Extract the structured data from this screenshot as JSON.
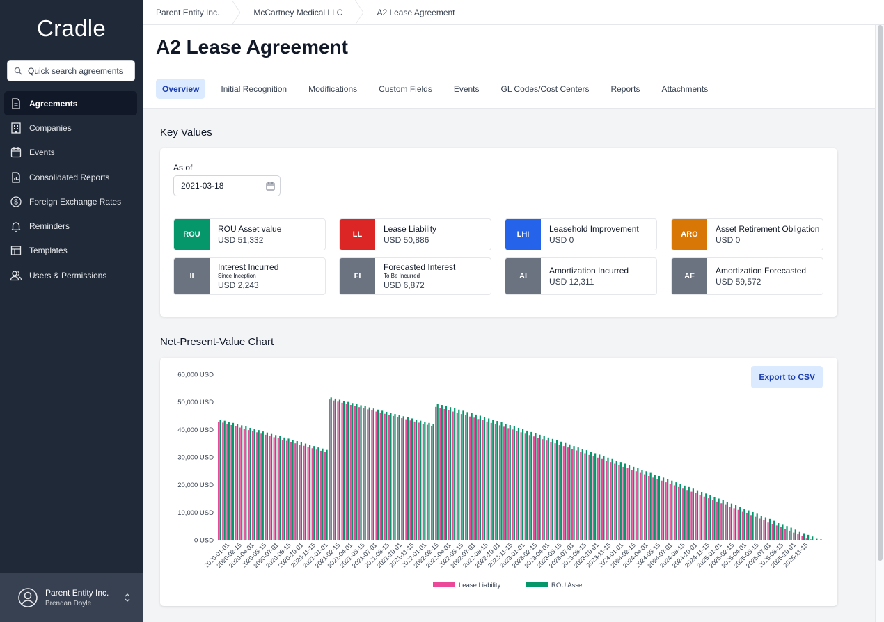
{
  "app": {
    "brand": "Cradle"
  },
  "search": {
    "placeholder": "Quick search agreements"
  },
  "sidebar": {
    "items": [
      {
        "label": "Agreements",
        "icon": "document-icon",
        "active": true
      },
      {
        "label": "Companies",
        "icon": "building-icon",
        "active": false
      },
      {
        "label": "Events",
        "icon": "calendar-icon",
        "active": false
      },
      {
        "label": "Consolidated Reports",
        "icon": "report-icon",
        "active": false
      },
      {
        "label": "Foreign Exchange Rates",
        "icon": "dollar-icon",
        "active": false
      },
      {
        "label": "Reminders",
        "icon": "bell-icon",
        "active": false
      },
      {
        "label": "Templates",
        "icon": "template-icon",
        "active": false
      },
      {
        "label": "Users & Permissions",
        "icon": "users-icon",
        "active": false
      }
    ]
  },
  "profile": {
    "org": "Parent Entity Inc.",
    "user": "Brendan Doyle"
  },
  "breadcrumb": [
    "Parent Entity Inc.",
    "McCartney Medical LLC",
    "A2 Lease Agreement"
  ],
  "page": {
    "title": "A2 Lease Agreement",
    "tabs": [
      "Overview",
      "Initial Recognition",
      "Modifications",
      "Custom Fields",
      "Events",
      "GL Codes/Cost Centers",
      "Reports",
      "Attachments"
    ],
    "active_tab": "Overview"
  },
  "key_values": {
    "section_title": "Key Values",
    "as_of_label": "As of",
    "as_of_value": "2021-03-18",
    "cards": [
      {
        "badge": "ROU",
        "label": "ROU Asset value",
        "sub": "",
        "value": "USD 51,332",
        "color": "#059669"
      },
      {
        "badge": "LL",
        "label": "Lease Liability",
        "sub": "",
        "value": "USD 50,886",
        "color": "#dc2626"
      },
      {
        "badge": "LHI",
        "label": "Leasehold Improvement",
        "sub": "",
        "value": "USD 0",
        "color": "#2563eb"
      },
      {
        "badge": "ARO",
        "label": "Asset Retirement Obligation",
        "sub": "",
        "value": "USD 0",
        "color": "#d97706"
      },
      {
        "badge": "II",
        "label": "Interest Incurred",
        "sub": "Since Inception",
        "value": "USD 2,243",
        "color": "#6b7280"
      },
      {
        "badge": "FI",
        "label": "Forecasted Interest",
        "sub": "To Be Incurred",
        "value": "USD 6,872",
        "color": "#6b7280"
      },
      {
        "badge": "AI",
        "label": "Amortization Incurred",
        "sub": "",
        "value": "USD 12,311",
        "color": "#6b7280"
      },
      {
        "badge": "AF",
        "label": "Amortization Forecasted",
        "sub": "",
        "value": "USD 59,572",
        "color": "#6b7280"
      }
    ]
  },
  "npv": {
    "section_title": "Net-Present-Value Chart",
    "export_label": "Export to CSV"
  },
  "chart_data": {
    "type": "bar",
    "title": "",
    "xlabel": "",
    "ylabel": "",
    "ylim": [
      0,
      60000
    ],
    "y_ticks": [
      "0 USD",
      "10,000 USD",
      "20,000 USD",
      "30,000 USD",
      "40,000 USD",
      "50,000 USD",
      "60,000 USD"
    ],
    "legend": "bottom",
    "x_tick_labels": [
      "2020-01-01",
      "2020-02-15",
      "2020-04-01",
      "2020-05-15",
      "2020-07-01",
      "2020-08-15",
      "2020-10-01",
      "2020-11-15",
      "2021-01-01",
      "2021-02-15",
      "2021-04-01",
      "2021-05-15",
      "2021-07-01",
      "2021-08-15",
      "2021-10-01",
      "2021-11-15",
      "2022-01-01",
      "2022-02-15",
      "2022-04-01",
      "2022-05-15",
      "2022-07-01",
      "2022-08-15",
      "2022-10-01",
      "2022-11-15",
      "2023-01-01",
      "2023-02-15",
      "2023-04-01",
      "2023-05-15",
      "2023-07-01",
      "2023-08-15",
      "2023-10-01",
      "2023-11-15",
      "2024-01-01",
      "2024-02-15",
      "2024-04-01",
      "2024-05-15",
      "2024-07-01",
      "2024-08-15",
      "2024-10-01",
      "2024-11-15",
      "2025-01-01",
      "2025-02-15",
      "2025-04-01",
      "2025-05-15",
      "2025-07-01",
      "2025-08-15",
      "2025-10-01",
      "2025-11-15"
    ],
    "series": [
      {
        "name": "Lease Liability",
        "color": "#ec4899",
        "values": [
          42800,
          42500,
          42000,
          41600,
          41100,
          40700,
          40300,
          39800,
          39400,
          39000,
          38500,
          38100,
          37600,
          37200,
          36800,
          36300,
          35900,
          35400,
          35000,
          34500,
          34100,
          33700,
          33200,
          32700,
          32300,
          31800,
          50900,
          50500,
          50100,
          49700,
          49300,
          48900,
          48500,
          48100,
          47700,
          47300,
          46900,
          46500,
          46100,
          45700,
          45300,
          44900,
          44500,
          44100,
          43700,
          43300,
          42900,
          42500,
          42100,
          41700,
          41300,
          48200,
          47800,
          47400,
          47000,
          46500,
          46100,
          45600,
          45200,
          44700,
          44300,
          43800,
          43400,
          42900,
          42400,
          42000,
          41500,
          41000,
          40500,
          40000,
          39500,
          39000,
          38500,
          38000,
          37500,
          37000,
          36500,
          36000,
          35500,
          35000,
          34500,
          34000,
          33500,
          32900,
          32400,
          31900,
          31400,
          30800,
          30300,
          29800,
          29300,
          28700,
          28200,
          27600,
          27100,
          26500,
          26000,
          25400,
          24900,
          24300,
          23800,
          23200,
          22600,
          22100,
          21500,
          20900,
          20400,
          19800,
          19200,
          18600,
          18100,
          17500,
          16900,
          16300,
          15700,
          15100,
          14500,
          13900,
          13300,
          12700,
          12100,
          11500,
          10900,
          10200,
          9600,
          9000,
          8400,
          7700,
          7100,
          6500,
          5800,
          5200,
          4600,
          3900,
          3300,
          2600,
          2000,
          1300,
          700,
          200,
          0,
          0
        ]
      },
      {
        "name": "ROU Asset",
        "color": "#059669",
        "values": [
          43600,
          43200,
          42800,
          42400,
          41900,
          41500,
          41100,
          40600,
          40200,
          39800,
          39300,
          38900,
          38400,
          38000,
          37600,
          37100,
          36700,
          36200,
          35800,
          35300,
          34900,
          34400,
          34000,
          33500,
          33100,
          32600,
          51600,
          51200,
          50800,
          50400,
          50000,
          49600,
          49200,
          48800,
          48400,
          48000,
          47600,
          47200,
          46800,
          46400,
          46000,
          45600,
          45200,
          44800,
          44400,
          44000,
          43600,
          43200,
          42800,
          42400,
          42000,
          49300,
          48900,
          48500,
          48100,
          47700,
          47200,
          46800,
          46300,
          45900,
          45400,
          45000,
          44500,
          44000,
          43600,
          43100,
          42600,
          42100,
          41600,
          41100,
          40600,
          40100,
          39600,
          39100,
          38600,
          38100,
          37600,
          37100,
          36600,
          36100,
          35600,
          35100,
          34600,
          34000,
          33500,
          33000,
          32500,
          31900,
          31400,
          30900,
          30400,
          29800,
          29300,
          28700,
          28200,
          27600,
          27100,
          26500,
          26000,
          25400,
          24900,
          24300,
          23700,
          23200,
          22600,
          22000,
          21500,
          20900,
          20300,
          19700,
          19200,
          18600,
          18000,
          17400,
          16800,
          16200,
          15600,
          15000,
          14400,
          13800,
          13200,
          12600,
          12000,
          11300,
          10700,
          10100,
          9500,
          8800,
          8200,
          7600,
          6900,
          6300,
          5700,
          5000,
          4400,
          3700,
          3100,
          2400,
          1800,
          1200,
          600,
          200
        ]
      }
    ]
  }
}
